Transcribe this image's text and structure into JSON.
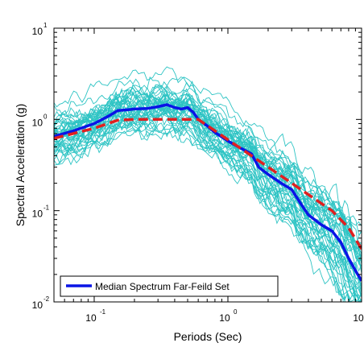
{
  "chart_data": {
    "type": "line",
    "xlabel": "Periods (Sec)",
    "ylabel": "Spectral Acceleration (g)",
    "x_scale": "log",
    "y_scale": "log",
    "xlim": [
      0.05,
      10
    ],
    "ylim": [
      0.01,
      10
    ],
    "x_ticks": [
      {
        "value": 0.1,
        "base": "10",
        "exp": "-1"
      },
      {
        "value": 1,
        "base": "10",
        "exp": "0"
      },
      {
        "value": 10,
        "base": "10",
        "exp": "1"
      }
    ],
    "y_ticks": [
      {
        "value": 0.01,
        "base": "10",
        "exp": "-2"
      },
      {
        "value": 0.1,
        "base": "10",
        "exp": "-1"
      },
      {
        "value": 1,
        "base": "10",
        "exp": "0"
      },
      {
        "value": 10,
        "base": "10",
        "exp": "1"
      }
    ],
    "grid": false,
    "legend_position": "bottom-left",
    "legend": [
      "Median Spectrum Far-Feild Set"
    ],
    "colors": {
      "records": "#2ec4c4",
      "median": "#0a14e6",
      "design": "#e02020"
    },
    "series": [
      {
        "name": "Median Spectrum Far-Feild Set",
        "style": "solid",
        "color": "#0a14e6",
        "points": [
          [
            0.05,
            0.65
          ],
          [
            0.07,
            0.75
          ],
          [
            0.1,
            0.9
          ],
          [
            0.13,
            1.1
          ],
          [
            0.15,
            1.25
          ],
          [
            0.18,
            1.28
          ],
          [
            0.2,
            1.3
          ],
          [
            0.25,
            1.32
          ],
          [
            0.3,
            1.38
          ],
          [
            0.35,
            1.45
          ],
          [
            0.4,
            1.35
          ],
          [
            0.45,
            1.3
          ],
          [
            0.5,
            1.35
          ],
          [
            0.55,
            1.2
          ],
          [
            0.6,
            1.0
          ],
          [
            0.7,
            0.85
          ],
          [
            0.8,
            0.72
          ],
          [
            1.0,
            0.58
          ],
          [
            1.2,
            0.5
          ],
          [
            1.5,
            0.42
          ],
          [
            1.7,
            0.3
          ],
          [
            2.0,
            0.25
          ],
          [
            2.5,
            0.2
          ],
          [
            3.0,
            0.17
          ],
          [
            3.5,
            0.12
          ],
          [
            4.0,
            0.09
          ],
          [
            5.0,
            0.07
          ],
          [
            6.0,
            0.06
          ],
          [
            7.0,
            0.045
          ],
          [
            8.0,
            0.03
          ],
          [
            9.0,
            0.022
          ],
          [
            10.0,
            0.017
          ]
        ]
      },
      {
        "style": "dashed",
        "color": "#e02020",
        "points": [
          [
            0.05,
            0.62
          ],
          [
            0.1,
            0.8
          ],
          [
            0.15,
            0.98
          ],
          [
            0.2,
            1.0
          ],
          [
            0.6,
            1.0
          ],
          [
            1.0,
            0.6
          ],
          [
            2.0,
            0.3
          ],
          [
            3.0,
            0.2
          ],
          [
            4.0,
            0.15
          ],
          [
            6.0,
            0.1
          ],
          [
            8.0,
            0.065
          ],
          [
            10.0,
            0.038
          ]
        ]
      }
    ],
    "record_count": 44
  }
}
